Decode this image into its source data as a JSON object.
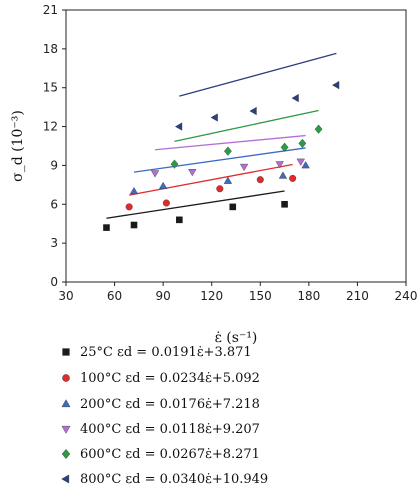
{
  "chart_data": {
    "type": "scatter",
    "xlabel": "ε̇ (s⁻¹)",
    "ylabel": "σ_d (10⁻³)",
    "xlim": [
      30,
      240
    ],
    "ylim": [
      0,
      21
    ],
    "xticks": [
      "30",
      "60",
      "90",
      "120",
      "150",
      "180",
      "210",
      "240"
    ],
    "yticks": [
      "0",
      "3",
      "6",
      "9",
      "12",
      "15",
      "18",
      "21"
    ],
    "grid": false,
    "legend_position": "bottom",
    "series": [
      {
        "name": "25°C",
        "equation": "εd = 0.0191ε̇+3.871",
        "marker": "square",
        "color": "#1a1a1a",
        "points": [
          [
            55,
            4.2
          ],
          [
            72,
            4.4
          ],
          [
            100,
            4.8
          ],
          [
            133,
            5.8
          ],
          [
            165,
            6.0
          ]
        ],
        "fit": {
          "slope": 0.0191,
          "intercept": 3.871,
          "x_range": [
            55,
            165
          ]
        }
      },
      {
        "name": "100°C",
        "equation": "εd = 0.0234ε̇+5.092",
        "marker": "circle",
        "color": "#e02b2b",
        "points": [
          [
            69,
            5.8
          ],
          [
            92,
            6.1
          ],
          [
            125,
            7.2
          ],
          [
            150,
            7.9
          ],
          [
            170,
            8.0
          ]
        ],
        "fit": {
          "slope": 0.0234,
          "intercept": 5.092,
          "x_range": [
            69,
            170
          ]
        }
      },
      {
        "name": "200°C",
        "equation": "εd = 0.0176ε̇+7.218",
        "marker": "triangle-up",
        "color": "#3a6cc7",
        "points": [
          [
            72,
            7.0
          ],
          [
            90,
            7.4
          ],
          [
            130,
            7.8
          ],
          [
            164,
            8.2
          ],
          [
            178,
            9.0
          ]
        ],
        "fit": {
          "slope": 0.0176,
          "intercept": 7.218,
          "x_range": [
            72,
            178
          ]
        }
      },
      {
        "name": "400°C",
        "equation": "εd = 0.0118ε̇+9.207",
        "marker": "triangle-down",
        "color": "#b36fd6",
        "points": [
          [
            85,
            8.4
          ],
          [
            108,
            8.5
          ],
          [
            140,
            8.9
          ],
          [
            162,
            9.1
          ],
          [
            175,
            9.3
          ]
        ],
        "fit": {
          "slope": 0.0118,
          "intercept": 9.207,
          "x_range": [
            85,
            178
          ]
        }
      },
      {
        "name": "600°C",
        "equation": "εd = 0.0267ε̇+8.271",
        "marker": "diamond",
        "color": "#2e9a48",
        "points": [
          [
            97,
            9.1
          ],
          [
            130,
            10.1
          ],
          [
            165,
            10.4
          ],
          [
            176,
            10.7
          ],
          [
            186,
            11.8
          ]
        ],
        "fit": {
          "slope": 0.0267,
          "intercept": 8.271,
          "x_range": [
            97,
            186
          ]
        }
      },
      {
        "name": "800°C",
        "equation": "εd = 0.0340ε̇+10.949",
        "marker": "triangle-left",
        "color": "#2c3f80",
        "points": [
          [
            100,
            12.0
          ],
          [
            122,
            12.7
          ],
          [
            146,
            13.2
          ],
          [
            172,
            14.2
          ],
          [
            197,
            15.2
          ]
        ],
        "fit": {
          "slope": 0.034,
          "intercept": 10.949,
          "x_range": [
            100,
            197
          ]
        }
      }
    ]
  }
}
